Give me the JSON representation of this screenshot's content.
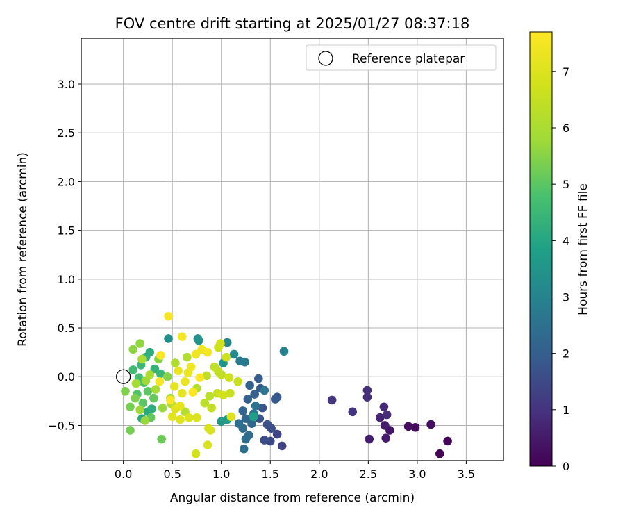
{
  "chart_data": {
    "type": "scatter",
    "title": "FOV centre drift starting at 2025/01/27 08:37:18",
    "xlabel": "Angular distance from reference (arcmin)",
    "ylabel": "Rotation from reference (arcmin)",
    "xlim": [
      -0.43,
      3.88
    ],
    "ylim": [
      -0.86,
      3.47
    ],
    "xticks": [
      0.0,
      0.5,
      1.0,
      1.5,
      2.0,
      2.5,
      3.0,
      3.5
    ],
    "xtick_labels": [
      "0.0",
      "0.5",
      "1.0",
      "1.5",
      "2.0",
      "2.5",
      "3.0",
      "3.5"
    ],
    "yticks": [
      -0.5,
      0.0,
      0.5,
      1.0,
      1.5,
      2.0,
      2.5,
      3.0
    ],
    "ytick_labels": [
      "−0.5",
      "0.0",
      "0.5",
      "1.0",
      "1.5",
      "2.0",
      "2.5",
      "3.0"
    ],
    "grid": true,
    "legend_position": "top-right",
    "legend": [
      {
        "label": "Reference platepar",
        "marker": "open-circle"
      }
    ],
    "reference_point": {
      "x": 0.0,
      "y": 0.0
    },
    "colorbar": {
      "label": "Hours from first FF file",
      "range": [
        0,
        7.7
      ],
      "ticks": [
        0,
        1,
        2,
        3,
        4,
        5,
        6,
        7
      ],
      "colormap": "viridis"
    },
    "points": [
      {
        "x": 3.23,
        "y": -0.79,
        "c": 0.05
      },
      {
        "x": 3.31,
        "y": -0.66,
        "c": 0.1
      },
      {
        "x": 2.98,
        "y": -0.52,
        "c": 0.2
      },
      {
        "x": 2.91,
        "y": -0.51,
        "c": 0.25
      },
      {
        "x": 3.14,
        "y": -0.49,
        "c": 0.3
      },
      {
        "x": 2.72,
        "y": -0.55,
        "c": 0.4
      },
      {
        "x": 2.68,
        "y": -0.63,
        "c": 0.5
      },
      {
        "x": 2.67,
        "y": -0.5,
        "c": 0.55
      },
      {
        "x": 2.51,
        "y": -0.64,
        "c": 0.6
      },
      {
        "x": 2.62,
        "y": -0.42,
        "c": 0.7
      },
      {
        "x": 2.66,
        "y": -0.31,
        "c": 0.8
      },
      {
        "x": 2.69,
        "y": -0.39,
        "c": 0.85
      },
      {
        "x": 2.49,
        "y": -0.21,
        "c": 0.9
      },
      {
        "x": 2.49,
        "y": -0.14,
        "c": 0.95
      },
      {
        "x": 2.34,
        "y": -0.36,
        "c": 1.0
      },
      {
        "x": 2.13,
        "y": -0.24,
        "c": 1.05
      },
      {
        "x": 1.62,
        "y": -0.71,
        "c": 1.3
      },
      {
        "x": 1.57,
        "y": -0.59,
        "c": 1.4
      },
      {
        "x": 1.5,
        "y": -0.66,
        "c": 1.5
      },
      {
        "x": 1.44,
        "y": -0.65,
        "c": 1.55
      },
      {
        "x": 1.51,
        "y": -0.53,
        "c": 1.6
      },
      {
        "x": 1.47,
        "y": -0.49,
        "c": 1.65
      },
      {
        "x": 1.39,
        "y": -0.43,
        "c": 1.7
      },
      {
        "x": 1.42,
        "y": -0.32,
        "c": 1.75
      },
      {
        "x": 1.55,
        "y": -0.23,
        "c": 1.8
      },
      {
        "x": 1.57,
        "y": -0.21,
        "c": 1.85
      },
      {
        "x": 1.38,
        "y": -0.02,
        "c": 1.9
      },
      {
        "x": 1.4,
        "y": -0.12,
        "c": 1.95
      },
      {
        "x": 1.34,
        "y": -0.18,
        "c": 2.0
      },
      {
        "x": 1.29,
        "y": -0.09,
        "c": 2.05
      },
      {
        "x": 1.27,
        "y": -0.23,
        "c": 2.1
      },
      {
        "x": 1.22,
        "y": -0.35,
        "c": 2.15
      },
      {
        "x": 1.25,
        "y": -0.43,
        "c": 2.2
      },
      {
        "x": 1.31,
        "y": -0.48,
        "c": 2.25
      },
      {
        "x": 1.22,
        "y": -0.53,
        "c": 2.3
      },
      {
        "x": 1.28,
        "y": -0.6,
        "c": 2.35
      },
      {
        "x": 1.25,
        "y": -0.64,
        "c": 2.4
      },
      {
        "x": 1.23,
        "y": -0.74,
        "c": 2.45
      },
      {
        "x": 1.18,
        "y": -0.48,
        "c": 2.5
      },
      {
        "x": 1.35,
        "y": -0.3,
        "c": 2.55
      },
      {
        "x": 1.33,
        "y": -0.38,
        "c": 2.6
      },
      {
        "x": 1.44,
        "y": -0.14,
        "c": 2.65
      },
      {
        "x": 1.24,
        "y": 0.15,
        "c": 2.7
      },
      {
        "x": 1.19,
        "y": 0.16,
        "c": 2.75
      },
      {
        "x": 1.64,
        "y": 0.26,
        "c": 3.0
      },
      {
        "x": 1.06,
        "y": 0.35,
        "c": 3.1
      },
      {
        "x": 1.13,
        "y": 0.23,
        "c": 3.2
      },
      {
        "x": 0.46,
        "y": 0.39,
        "c": 3.3
      },
      {
        "x": 0.76,
        "y": 0.39,
        "c": 3.4
      },
      {
        "x": 0.77,
        "y": 0.37,
        "c": 3.5
      },
      {
        "x": 1.02,
        "y": 0.14,
        "c": 3.5
      },
      {
        "x": 1.0,
        "y": -0.46,
        "c": 3.6
      },
      {
        "x": 1.06,
        "y": -0.44,
        "c": 3.7
      },
      {
        "x": 1.33,
        "y": -0.41,
        "c": 3.8
      },
      {
        "x": 0.19,
        "y": -0.43,
        "c": 4.0
      },
      {
        "x": 0.25,
        "y": -0.36,
        "c": 4.1
      },
      {
        "x": 0.29,
        "y": -0.33,
        "c": 4.2
      },
      {
        "x": 0.27,
        "y": 0.25,
        "c": 4.2
      },
      {
        "x": 0.23,
        "y": 0.2,
        "c": 4.3
      },
      {
        "x": 0.32,
        "y": 0.08,
        "c": 4.4
      },
      {
        "x": 0.38,
        "y": 0.03,
        "c": 4.5
      },
      {
        "x": 0.18,
        "y": 0.12,
        "c": 4.5
      },
      {
        "x": 0.1,
        "y": 0.07,
        "c": 4.6
      },
      {
        "x": 0.16,
        "y": -0.01,
        "c": 4.7
      },
      {
        "x": 0.21,
        "y": -0.06,
        "c": 4.8
      },
      {
        "x": 0.14,
        "y": -0.18,
        "c": 4.9
      },
      {
        "x": 0.25,
        "y": -0.15,
        "c": 5.0
      },
      {
        "x": 0.2,
        "y": -0.27,
        "c": 5.0
      },
      {
        "x": 0.31,
        "y": -0.22,
        "c": 5.1
      },
      {
        "x": 0.28,
        "y": -0.42,
        "c": 5.1
      },
      {
        "x": 0.39,
        "y": -0.64,
        "c": 5.2
      },
      {
        "x": 0.07,
        "y": -0.55,
        "c": 5.3
      },
      {
        "x": 0.07,
        "y": -0.31,
        "c": 5.3
      },
      {
        "x": 0.02,
        "y": -0.15,
        "c": 5.4
      },
      {
        "x": 0.12,
        "y": -0.22,
        "c": 5.4
      },
      {
        "x": 0.36,
        "y": 0.18,
        "c": 5.5
      },
      {
        "x": 0.45,
        "y": 0.0,
        "c": 5.5
      },
      {
        "x": 0.17,
        "y": 0.34,
        "c": 5.6
      },
      {
        "x": 0.1,
        "y": 0.28,
        "c": 5.6
      },
      {
        "x": 0.4,
        "y": -0.32,
        "c": 5.7
      },
      {
        "x": 0.22,
        "y": -0.45,
        "c": 5.7
      },
      {
        "x": 0.17,
        "y": -0.34,
        "c": 5.8
      },
      {
        "x": 0.23,
        "y": -0.04,
        "c": 5.8
      },
      {
        "x": 0.13,
        "y": -0.07,
        "c": 5.9
      },
      {
        "x": 0.33,
        "y": -0.13,
        "c": 5.9
      },
      {
        "x": 0.27,
        "y": 0.02,
        "c": 6.0
      },
      {
        "x": 0.19,
        "y": 0.18,
        "c": 6.0
      },
      {
        "x": 0.48,
        "y": -0.22,
        "c": 6.0
      },
      {
        "x": 0.53,
        "y": 0.14,
        "c": 6.1
      },
      {
        "x": 0.65,
        "y": 0.2,
        "c": 6.1
      },
      {
        "x": 0.49,
        "y": -0.28,
        "c": 6.2
      },
      {
        "x": 0.63,
        "y": -0.36,
        "c": 6.2
      },
      {
        "x": 0.75,
        "y": -0.12,
        "c": 6.2
      },
      {
        "x": 0.88,
        "y": -0.2,
        "c": 6.3
      },
      {
        "x": 0.83,
        "y": -0.27,
        "c": 6.3
      },
      {
        "x": 0.85,
        "y": 0.01,
        "c": 6.4
      },
      {
        "x": 0.93,
        "y": 0.1,
        "c": 6.4
      },
      {
        "x": 0.97,
        "y": 0.05,
        "c": 6.5
      },
      {
        "x": 1.0,
        "y": 0.02,
        "c": 6.5
      },
      {
        "x": 0.9,
        "y": -0.32,
        "c": 6.5
      },
      {
        "x": 0.96,
        "y": -0.17,
        "c": 6.6
      },
      {
        "x": 1.09,
        "y": -0.17,
        "c": 6.6
      },
      {
        "x": 1.17,
        "y": -0.05,
        "c": 6.6
      },
      {
        "x": 1.08,
        "y": -0.01,
        "c": 6.7
      },
      {
        "x": 1.05,
        "y": 0.2,
        "c": 6.7
      },
      {
        "x": 0.97,
        "y": 0.3,
        "c": 6.7
      },
      {
        "x": 0.99,
        "y": 0.34,
        "c": 6.8
      },
      {
        "x": 1.02,
        "y": -0.19,
        "c": 6.8
      },
      {
        "x": 0.74,
        "y": -0.79,
        "c": 6.8
      },
      {
        "x": 0.86,
        "y": -0.7,
        "c": 6.9
      },
      {
        "x": 0.89,
        "y": -0.55,
        "c": 6.9
      },
      {
        "x": 0.87,
        "y": -0.53,
        "c": 6.9
      },
      {
        "x": 1.1,
        "y": -0.41,
        "c": 7.0
      },
      {
        "x": 0.75,
        "y": -0.42,
        "c": 7.0
      },
      {
        "x": 0.67,
        "y": -0.42,
        "c": 7.0
      },
      {
        "x": 0.58,
        "y": -0.44,
        "c": 7.1
      },
      {
        "x": 0.5,
        "y": -0.41,
        "c": 7.1
      },
      {
        "x": 0.53,
        "y": -0.33,
        "c": 7.1
      },
      {
        "x": 0.58,
        "y": -0.3,
        "c": 7.2
      },
      {
        "x": 0.6,
        "y": -0.17,
        "c": 7.2
      },
      {
        "x": 0.52,
        "y": -0.1,
        "c": 7.2
      },
      {
        "x": 0.63,
        "y": -0.05,
        "c": 7.3
      },
      {
        "x": 0.56,
        "y": 0.06,
        "c": 7.3
      },
      {
        "x": 0.66,
        "y": 0.04,
        "c": 7.3
      },
      {
        "x": 0.69,
        "y": 0.1,
        "c": 7.4
      },
      {
        "x": 0.74,
        "y": 0.23,
        "c": 7.4
      },
      {
        "x": 0.8,
        "y": 0.28,
        "c": 7.4
      },
      {
        "x": 0.86,
        "y": 0.25,
        "c": 7.5
      },
      {
        "x": 0.6,
        "y": 0.41,
        "c": 7.5
      },
      {
        "x": 0.46,
        "y": 0.62,
        "c": 7.6
      },
      {
        "x": 0.37,
        "y": -0.05,
        "c": 7.6
      },
      {
        "x": 0.48,
        "y": -0.24,
        "c": 7.6
      },
      {
        "x": 0.38,
        "y": 0.22,
        "c": 7.7
      },
      {
        "x": 0.71,
        "y": -0.16,
        "c": 7.7
      },
      {
        "x": 0.78,
        "y": -0.01,
        "c": 7.7
      }
    ]
  }
}
